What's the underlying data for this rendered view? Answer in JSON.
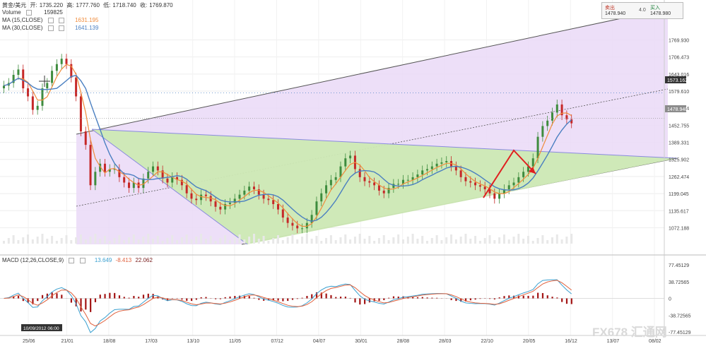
{
  "header": {
    "symbol": "黄金/美元",
    "open_label": "开:",
    "open": "1735.220",
    "high_label": "高:",
    "high": "1777.760",
    "low_label": "低:",
    "low": "1718.740",
    "close_label": "收:",
    "close": "1769.870"
  },
  "indicators": {
    "volume_label": "Volume",
    "volume_value": "159825",
    "ma15_label": "MA (15,CLOSE)",
    "ma15_value": "1631.195",
    "ma15_color": "#f08c3c",
    "ma30_label": "MA (30,CLOSE)",
    "ma30_value": "1641.139",
    "ma30_color": "#4a7fc1",
    "macd_label": "MACD (12,26,CLOSE,9)",
    "macd_v1": "13.649",
    "macd_v2": "-8.413",
    "macd_v3": "22.062"
  },
  "quote": {
    "sell_label": "卖出",
    "sell_value": "1478.940",
    "spread": "4.0",
    "buy_label": "买入",
    "buy_value": "1478.980"
  },
  "watermark": "FX678 汇通网",
  "cursor_date": "10/09/2012 06:00",
  "colors": {
    "up": "#3e8c3e",
    "down": "#c62828",
    "channel_fill": "#ead9f7",
    "triangle_fill": "#cde9b4"
  },
  "chart_data": {
    "type": "candlestick",
    "ylim": [
      1000,
      1800
    ],
    "price_ticks": [
      "1769.930",
      "1706.473",
      "1643.016",
      "1579.610",
      "1516.164",
      "1452.755",
      "1389.331",
      "1325.902",
      "1262.474",
      "1199.045",
      "1135.617",
      "1072.188"
    ],
    "price_tick_values": [
      1769.93,
      1706.473,
      1643.016,
      1579.61,
      1516.164,
      1452.755,
      1389.331,
      1325.902,
      1262.474,
      1199.045,
      1135.617,
      1072.188
    ],
    "current_price": "1478.940",
    "current_price_value": 1478.94,
    "marker_price": "1573.162",
    "marker_price_value": 1573.162,
    "x_ticks": [
      "25/06",
      "21/01",
      "18/08",
      "17/03",
      "13/10",
      "11/05",
      "07/12",
      "04/07",
      "30/01",
      "28/08",
      "28/03",
      "22/10",
      "20/05",
      "16/12",
      "13/07",
      "08/02"
    ],
    "x_tick_index": [
      0,
      11,
      23,
      35,
      47,
      59,
      71,
      83,
      95,
      107,
      119,
      131,
      143,
      155,
      167,
      179
    ],
    "n_slots": 186,
    "closes": [
      1600,
      1610,
      1640,
      1660,
      1590,
      1560,
      1510,
      1525,
      1590,
      1610,
      1655,
      1680,
      1700,
      1680,
      1630,
      1560,
      1430,
      1380,
      1230,
      1280,
      1310,
      1280,
      1290,
      1290,
      1260,
      1240,
      1220,
      1240,
      1220,
      1255,
      1280,
      1300,
      1285,
      1255,
      1240,
      1260,
      1250,
      1230,
      1200,
      1180,
      1175,
      1195,
      1190,
      1170,
      1150,
      1140,
      1160,
      1165,
      1180,
      1195,
      1210,
      1225,
      1215,
      1195,
      1180,
      1175,
      1160,
      1140,
      1110,
      1090,
      1080,
      1070,
      1070,
      1090,
      1120,
      1170,
      1200,
      1230,
      1250,
      1260,
      1300,
      1330,
      1340,
      1290,
      1260,
      1245,
      1240,
      1230,
      1210,
      1200,
      1220,
      1235,
      1235,
      1250,
      1250,
      1260,
      1270,
      1285,
      1290,
      1300,
      1310,
      1315,
      1320,
      1300,
      1285,
      1260,
      1245,
      1240,
      1230,
      1225,
      1215,
      1200,
      1180,
      1200,
      1215,
      1230,
      1240,
      1260,
      1280,
      1300,
      1330,
      1410,
      1450,
      1470,
      1500,
      1530,
      1490,
      1475,
      1460
    ],
    "series": [
      {
        "name": "MA (15,CLOSE)",
        "value": 1631.195
      },
      {
        "name": "MA (30,CLOSE)",
        "value": 1641.139
      }
    ],
    "macd": {
      "ylim": [
        -77.45129,
        77.45129
      ],
      "ticks": [
        "77.45129",
        "38.72565",
        "0",
        "-38.72565",
        "-77.45129"
      ],
      "tick_values": [
        77.45129,
        38.72565,
        0,
        -38.72565,
        -77.45129
      ]
    }
  }
}
